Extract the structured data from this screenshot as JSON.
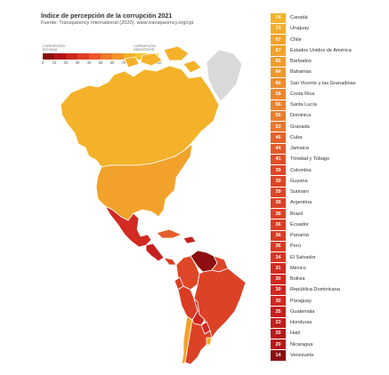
{
  "header": {
    "title": "Índice de percepción de la corrupción 2021",
    "source": "Fuente: Transparency International (2020). www.transparency.org/cpi"
  },
  "legend": {
    "low_label": "Corrupción elevada",
    "high_label": "Corrupción inexistente",
    "ticks": [
      "0",
      "10",
      "20",
      "30",
      "40",
      "50",
      "60",
      "70",
      "80",
      "90",
      "100"
    ],
    "colors": [
      "#8b0c0c",
      "#b01419",
      "#cc2520",
      "#de3c25",
      "#e8582a",
      "#ee772d",
      "#f3952c",
      "#f6ae29",
      "#f8c52b",
      "#fadc36"
    ]
  },
  "ranking": [
    {
      "score": "74",
      "country": "Canadá",
      "color": "#f4b22a"
    },
    {
      "score": "73",
      "country": "Uruguay",
      "color": "#f3ad2a"
    },
    {
      "score": "67",
      "country": "Chile",
      "color": "#f2a22b"
    },
    {
      "score": "67",
      "country": "Estados Unidos de América",
      "color": "#f2a22b"
    },
    {
      "score": "65",
      "country": "Barbados",
      "color": "#f09c2c"
    },
    {
      "score": "64",
      "country": "Bahamas",
      "color": "#f0992c"
    },
    {
      "score": "60",
      "country": "San Vicente y las Granadinas",
      "color": "#ee8c2d"
    },
    {
      "score": "58",
      "country": "Costa Rica",
      "color": "#ec862d"
    },
    {
      "score": "56",
      "country": "Santa Lucía",
      "color": "#eb812d"
    },
    {
      "score": "55",
      "country": "Dominica",
      "color": "#ea7e2d"
    },
    {
      "score": "53",
      "country": "Granada",
      "color": "#e9772c"
    },
    {
      "score": "46",
      "country": "Cuba",
      "color": "#e4602a"
    },
    {
      "score": "44",
      "country": "Jamaica",
      "color": "#e35a29"
    },
    {
      "score": "41",
      "country": "Trinidad y Tobago",
      "color": "#e04f27"
    },
    {
      "score": "39",
      "country": "Colombia",
      "color": "#dd4626"
    },
    {
      "score": "39",
      "country": "Guyana",
      "color": "#dd4626"
    },
    {
      "score": "39",
      "country": "Surinam",
      "color": "#dd4626"
    },
    {
      "score": "38",
      "country": "Argentina",
      "color": "#dc4225"
    },
    {
      "score": "38",
      "country": "Brasil",
      "color": "#dc4225"
    },
    {
      "score": "36",
      "country": "Ecuador",
      "color": "#da3c24"
    },
    {
      "score": "36",
      "country": "Panamá",
      "color": "#da3c24"
    },
    {
      "score": "36",
      "country": "Perú",
      "color": "#da3c24"
    },
    {
      "score": "34",
      "country": "El Salvador",
      "color": "#d73523"
    },
    {
      "score": "31",
      "country": "México",
      "color": "#d32b21"
    },
    {
      "score": "30",
      "country": "Bolivia",
      "color": "#d12720"
    },
    {
      "score": "30",
      "country": "República Dominicana",
      "color": "#d12720"
    },
    {
      "score": "30",
      "country": "Paraguay",
      "color": "#d12720"
    },
    {
      "score": "25",
      "country": "Guatemala",
      "color": "#c6211e"
    },
    {
      "score": "23",
      "country": "Honduras",
      "color": "#c11e1c"
    },
    {
      "score": "20",
      "country": "Haití",
      "color": "#b8191a"
    },
    {
      "score": "20",
      "country": "Nicaragua",
      "color": "#b8191a"
    },
    {
      "score": "14",
      "country": "Venezuela",
      "color": "#8d0f12"
    }
  ],
  "map_colors": {
    "border": "#ffffff",
    "canada": "#f4b22a",
    "greenland": "#d9d9d9",
    "usa": "#f2a22b",
    "mexico": "#d32b21",
    "central_america": "#c6211e",
    "panama": "#da3c24",
    "caribbean": "#e4602a",
    "colombia": "#dd4626",
    "venezuela": "#8d0f12",
    "guianas": "#dd4626",
    "brazil": "#dc4225",
    "ecuador": "#da3c24",
    "peru": "#da3c24",
    "bolivia": "#d12720",
    "paraguay": "#d12720",
    "chile": "#f2a22b",
    "argentina": "#dc4225",
    "uruguay": "#f3ad2a"
  }
}
